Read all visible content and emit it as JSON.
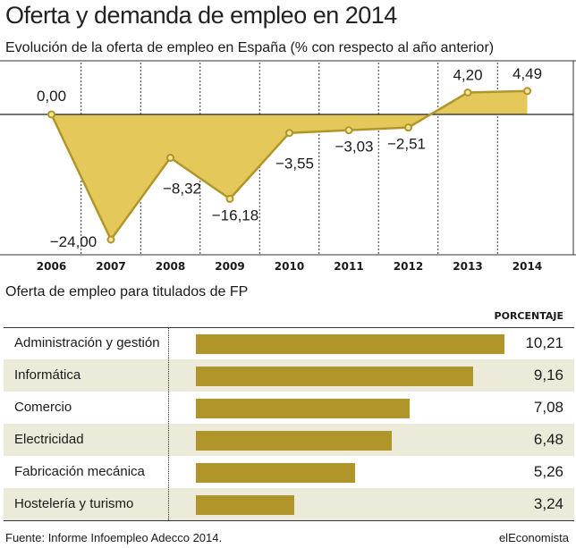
{
  "title": "Oferta y demanda de empleo en 2014",
  "footer": {
    "source": "Fuente: Informe Infoempleo Adecco 2014.",
    "brand": "elEconomista"
  },
  "colors": {
    "area_fill": "#e4c95a",
    "line": "#b0962a",
    "bar": "#b0962a",
    "row_shade": "#ecebd9"
  },
  "chart_data": [
    {
      "type": "area",
      "title": "Evolución de la oferta de empleo en España (% con respecto al año anterior)",
      "x": [
        "2006",
        "2007",
        "2008",
        "2009",
        "2010",
        "2011",
        "2012",
        "2013",
        "2014"
      ],
      "values": [
        0.0,
        -24.0,
        -8.32,
        -16.18,
        -3.55,
        -3.03,
        -2.51,
        4.2,
        4.49
      ],
      "labels": [
        "0,00",
        "−24,00",
        "−8,32",
        "−16,18",
        "−3,55",
        "−3,03",
        "−2,51",
        "4,20",
        "4,49"
      ],
      "ylim": [
        -26,
        7
      ],
      "grid": "vertical dashed lines"
    },
    {
      "type": "bar",
      "title": "Oferta de empleo para titulados de FP",
      "column_header": "PORCENTAJE",
      "categories": [
        "Administración y gestión",
        "Informática",
        "Comercio",
        "Electricidad",
        "Fabricación mecánica",
        "Hostelería y turismo"
      ],
      "values": [
        10.21,
        9.16,
        7.08,
        6.48,
        5.26,
        3.24
      ],
      "labels": [
        "10,21",
        "9,16",
        "7,08",
        "6,48",
        "5,26",
        "3,24"
      ],
      "xlim": [
        0,
        10.5
      ]
    }
  ]
}
